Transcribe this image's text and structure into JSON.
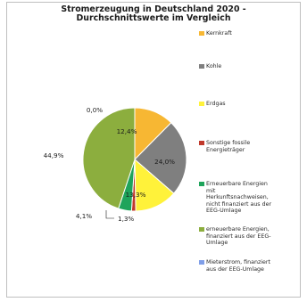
{
  "chart_data": {
    "type": "pie",
    "title": [
      "Stromerzeugung in Deutschland 2020 -",
      "Durchschnittswerte im Vergleich"
    ],
    "slices": [
      {
        "name": "Kernkraft",
        "value": 12.4,
        "label": "12,4%",
        "color": "#F7B733"
      },
      {
        "name": "Kohle",
        "value": 24.0,
        "label": "24,0%",
        "color": "#7F7F7F"
      },
      {
        "name": "Erdgas",
        "value": 13.3,
        "label": "13,3%",
        "color": "#FFF23A"
      },
      {
        "name": "Sonstige fossile Energieträger",
        "value": 1.3,
        "label": "1,3%",
        "color": "#C0392B"
      },
      {
        "name": "Erneuerbare Energien mit Herkunftsnachweisen, nicht finanziert aus der EEG-Umlage",
        "value": 4.1,
        "label": "4,1%",
        "color": "#1FA45B"
      },
      {
        "name": "erneuerbare Energien, finanziert aus der EEG-Umlage",
        "value": 44.9,
        "label": "44,9%",
        "color": "#8CAE3E"
      },
      {
        "name": "Mieterstrom, finanziert aus der EEG-Umlage",
        "value": 0.0,
        "label": "0,0%",
        "color": "#7F9EE8"
      }
    ],
    "legend_position": "right"
  }
}
